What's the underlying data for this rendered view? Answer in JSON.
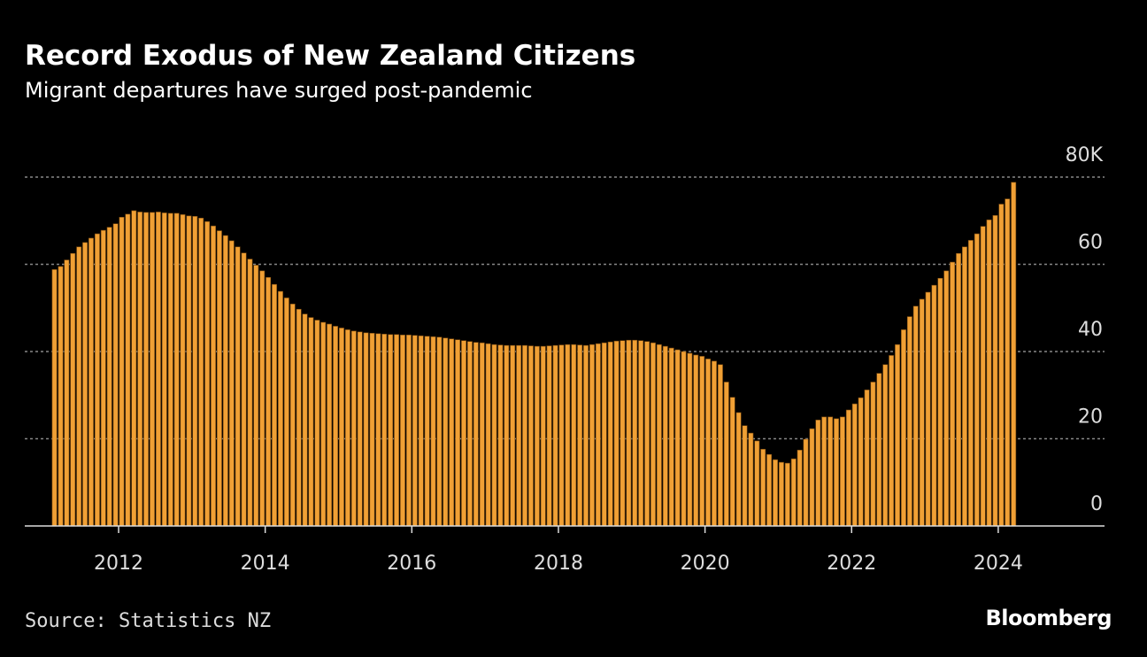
{
  "chart_data": {
    "type": "bar",
    "title": "Record Exodus of New Zealand Citizens",
    "subtitle": "Migrant departures have surged post-pandemic",
    "source": "Source: Statistics NZ",
    "brand": "Bloomberg",
    "color": "#f0a035",
    "grid": true,
    "xlim": [
      2010.72,
      2025.45
    ],
    "xticks": [
      2012,
      2014,
      2016,
      2018,
      2020,
      2022,
      2024
    ],
    "ylim": [
      0,
      80
    ],
    "yticks": [
      0,
      20,
      40,
      60,
      {
        "value": 80,
        "label": "80K"
      }
    ],
    "x": [
      2011.083,
      2011.167,
      2011.25,
      2011.333,
      2011.417,
      2011.5,
      2011.583,
      2011.667,
      2011.75,
      2011.833,
      2011.917,
      2012,
      2012.083,
      2012.167,
      2012.25,
      2012.333,
      2012.417,
      2012.5,
      2012.583,
      2012.667,
      2012.75,
      2012.833,
      2012.917,
      2013,
      2013.083,
      2013.167,
      2013.25,
      2013.333,
      2013.417,
      2013.5,
      2013.583,
      2013.667,
      2013.75,
      2013.833,
      2013.917,
      2014,
      2014.083,
      2014.167,
      2014.25,
      2014.333,
      2014.417,
      2014.5,
      2014.583,
      2014.667,
      2014.75,
      2014.833,
      2014.917,
      2015,
      2015.083,
      2015.167,
      2015.25,
      2015.333,
      2015.417,
      2015.5,
      2015.583,
      2015.667,
      2015.75,
      2015.833,
      2015.917,
      2016,
      2016.083,
      2016.167,
      2016.25,
      2016.333,
      2016.417,
      2016.5,
      2016.583,
      2016.667,
      2016.75,
      2016.833,
      2016.917,
      2017,
      2017.083,
      2017.167,
      2017.25,
      2017.333,
      2017.417,
      2017.5,
      2017.583,
      2017.667,
      2017.75,
      2017.833,
      2017.917,
      2018,
      2018.083,
      2018.167,
      2018.25,
      2018.333,
      2018.417,
      2018.5,
      2018.583,
      2018.667,
      2018.75,
      2018.833,
      2018.917,
      2019,
      2019.083,
      2019.167,
      2019.25,
      2019.333,
      2019.417,
      2019.5,
      2019.583,
      2019.667,
      2019.75,
      2019.833,
      2019.917,
      2020,
      2020.083,
      2020.167,
      2020.25,
      2020.333,
      2020.417,
      2020.5,
      2020.583,
      2020.667,
      2020.75,
      2020.833,
      2020.917,
      2021,
      2021.083,
      2021.167,
      2021.25,
      2021.333,
      2021.417,
      2021.5,
      2021.583,
      2021.667,
      2021.75,
      2021.833,
      2021.917,
      2022,
      2022.083,
      2022.167,
      2022.25,
      2022.333,
      2022.417,
      2022.5,
      2022.583,
      2022.667,
      2022.75,
      2022.833,
      2022.917,
      2023,
      2023.083,
      2023.167,
      2023.25,
      2023.333,
      2023.417,
      2023.5,
      2023.583,
      2023.667,
      2023.75,
      2023.833,
      2023.917,
      2024,
      2024.083,
      2024.167
    ],
    "values": [
      58.8,
      59.5,
      61,
      62.5,
      64,
      65,
      66,
      67,
      67.8,
      68.5,
      69.3,
      70.8,
      71.5,
      72.3,
      72,
      71.9,
      71.9,
      72,
      71.8,
      71.7,
      71.7,
      71.4,
      71.1,
      71,
      70.6,
      69.8,
      68.8,
      67.7,
      66.6,
      65.4,
      64,
      62.6,
      61.2,
      59.8,
      58.5,
      57,
      55.4,
      53.8,
      52.3,
      50.9,
      49.7,
      48.6,
      47.8,
      47.2,
      46.7,
      46.3,
      45.8,
      45.4,
      45,
      44.7,
      44.5,
      44.3,
      44.2,
      44.1,
      44,
      43.9,
      43.9,
      43.8,
      43.8,
      43.7,
      43.6,
      43.5,
      43.4,
      43.3,
      43.1,
      42.9,
      42.7,
      42.5,
      42.3,
      42.1,
      42,
      41.8,
      41.6,
      41.5,
      41.4,
      41.4,
      41.4,
      41.4,
      41.3,
      41.2,
      41.2,
      41.3,
      41.4,
      41.5,
      41.6,
      41.6,
      41.5,
      41.4,
      41.6,
      41.8,
      42,
      42.2,
      42.4,
      42.5,
      42.6,
      42.6,
      42.5,
      42.3,
      42,
      41.6,
      41.2,
      40.8,
      40.4,
      40,
      39.6,
      39.2,
      38.9,
      38.3,
      37.8,
      37,
      33,
      29.5,
      26,
      23,
      21.3,
      19.5,
      17.6,
      16.4,
      15.2,
      14.6,
      14.4,
      15.4,
      17.4,
      19.9,
      22.3,
      24.3,
      25,
      25,
      24.6,
      25,
      26.6,
      28,
      29.4,
      31.2,
      33,
      35,
      37,
      39.1,
      41.6,
      45,
      48,
      50.4,
      52,
      53.6,
      55.2,
      56.8,
      58.5,
      60.5,
      62.5,
      64,
      65.5,
      67,
      68.7,
      70.2,
      71.2,
      73.8,
      75,
      78.8
    ]
  }
}
